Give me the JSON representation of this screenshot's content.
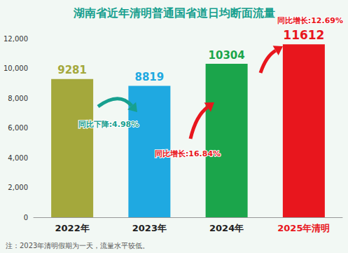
{
  "chart_data": {
    "type": "bar",
    "title": "湖南省近年清明普通国省道日均断面流量",
    "categories": [
      "2022年",
      "2023年",
      "2024年",
      "2025年清明"
    ],
    "values": [
      9281,
      8819,
      10304,
      11612
    ],
    "colors": [
      "#a4a83c",
      "#1fa9e1",
      "#1ba54b",
      "#e8161d"
    ],
    "ylim": [
      0,
      12000
    ],
    "yticks": [
      0,
      {
        "value": 2000,
        "label": "2,000"
      },
      {
        "value": 4000,
        "label": "4,000"
      },
      {
        "value": 6000,
        "label": "6,000"
      },
      {
        "value": 8000,
        "label": "8,000"
      },
      {
        "value": 10000,
        "label": "10,000"
      },
      {
        "value": 12000,
        "label": "12,000"
      }
    ],
    "grid": false,
    "data_labels": true,
    "annotations": [
      "同比下降:4.98%",
      "同比增长:16.84%",
      "同比增长:12.69%"
    ],
    "note": "注：2023年清明假期为一天，流量水平较低。"
  }
}
